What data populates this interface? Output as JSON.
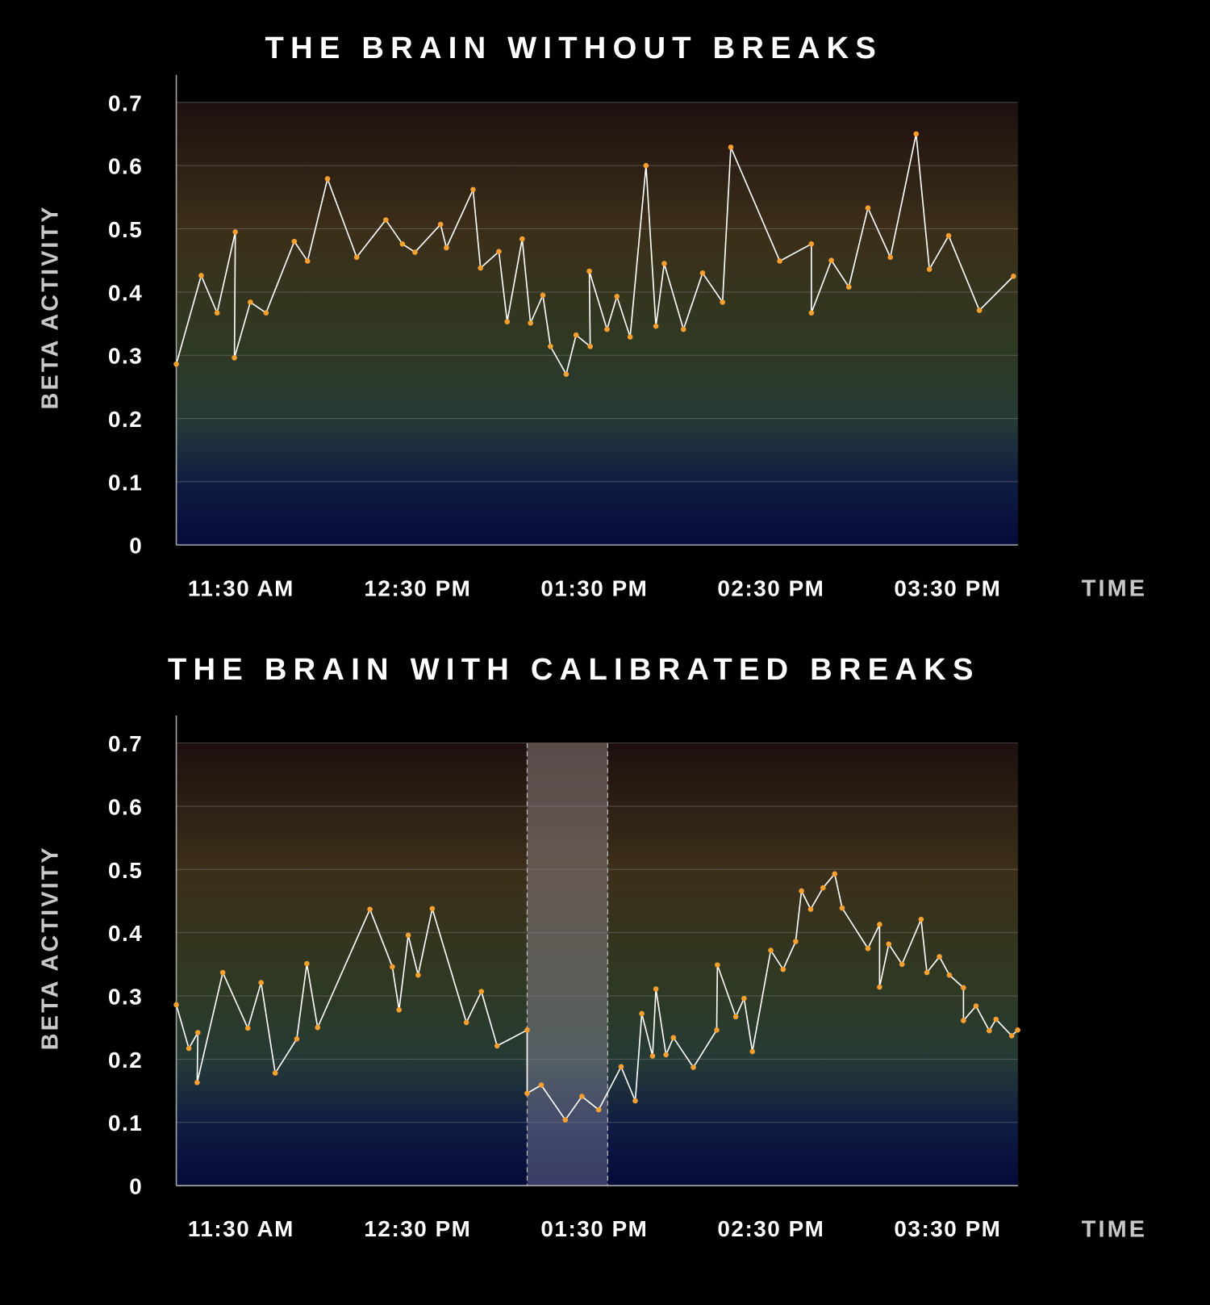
{
  "chart_data": [
    {
      "type": "line",
      "title": "THE BRAIN WITHOUT BREAKS",
      "ylabel": "BETA ACTIVITY",
      "xlabel": "TIME",
      "line_color": "#ffffff",
      "marker_color": "#f5a030",
      "xlim": [
        11.133,
        15.897
      ],
      "ylim": [
        0,
        0.7
      ],
      "xticks": [
        {
          "value": 11.5,
          "label": "11:30 AM"
        },
        {
          "value": 12.5,
          "label": "12:30 PM"
        },
        {
          "value": 13.5,
          "label": "01:30 PM"
        },
        {
          "value": 14.5,
          "label": "02:30 PM"
        },
        {
          "value": 15.5,
          "label": "03:30 PM"
        }
      ],
      "yticks": [
        0,
        0.1,
        0.2,
        0.3,
        0.4,
        0.5,
        0.6,
        0.7
      ],
      "grid": true,
      "x": [
        11.133,
        11.274,
        11.364,
        11.467,
        11.462,
        11.552,
        11.641,
        11.801,
        11.876,
        11.989,
        12.154,
        12.319,
        12.413,
        12.484,
        12.629,
        12.662,
        12.813,
        12.855,
        12.959,
        13.006,
        13.091,
        13.138,
        13.208,
        13.251,
        13.34,
        13.396,
        13.476,
        13.471,
        13.571,
        13.627,
        13.702,
        13.792,
        13.848,
        13.895,
        14.004,
        14.112,
        14.225,
        14.272,
        14.549,
        14.728,
        14.728,
        14.841,
        14.94,
        15.048,
        15.175,
        15.321,
        15.396,
        15.505,
        15.679,
        15.872
      ],
      "values": [
        0.286,
        0.426,
        0.367,
        0.495,
        0.296,
        0.384,
        0.367,
        0.48,
        0.449,
        0.579,
        0.455,
        0.514,
        0.476,
        0.463,
        0.507,
        0.47,
        0.562,
        0.438,
        0.464,
        0.353,
        0.484,
        0.351,
        0.395,
        0.314,
        0.27,
        0.332,
        0.314,
        0.433,
        0.341,
        0.393,
        0.329,
        0.6,
        0.346,
        0.445,
        0.341,
        0.43,
        0.384,
        0.629,
        0.449,
        0.476,
        0.367,
        0.45,
        0.408,
        0.533,
        0.455,
        0.65,
        0.436,
        0.489,
        0.371,
        0.425
      ]
    },
    {
      "type": "line",
      "title": "THE BRAIN WITH CALIBRATED BREAKS",
      "ylabel": "BETA ACTIVITY",
      "xlabel": "TIME",
      "line_color": "#ffffff",
      "marker_color": "#f5a030",
      "shaded_range": [
        13.119,
        13.575
      ],
      "xlim": [
        11.133,
        15.897
      ],
      "ylim": [
        0,
        0.7
      ],
      "xticks": [
        {
          "value": 11.5,
          "label": "11:30 AM"
        },
        {
          "value": 12.5,
          "label": "12:30 PM"
        },
        {
          "value": 13.5,
          "label": "01:30 PM"
        },
        {
          "value": 14.5,
          "label": "02:30 PM"
        },
        {
          "value": 15.5,
          "label": "03:30 PM"
        }
      ],
      "yticks": [
        0,
        0.1,
        0.2,
        0.3,
        0.4,
        0.5,
        0.6,
        0.7
      ],
      "grid": true,
      "x": [
        11.133,
        11.204,
        11.255,
        11.251,
        11.396,
        11.538,
        11.613,
        11.693,
        11.815,
        11.872,
        11.933,
        12.229,
        12.356,
        12.394,
        12.446,
        12.502,
        12.582,
        12.775,
        12.86,
        12.949,
        13.119,
        13.119,
        13.199,
        13.335,
        13.429,
        13.524,
        13.651,
        13.731,
        13.768,
        13.829,
        13.848,
        13.905,
        13.947,
        14.06,
        14.192,
        14.196,
        14.3,
        14.347,
        14.394,
        14.498,
        14.568,
        14.639,
        14.672,
        14.724,
        14.794,
        14.86,
        14.902,
        15.048,
        15.114,
        15.114,
        15.166,
        15.241,
        15.349,
        15.382,
        15.453,
        15.509,
        15.589,
        15.589,
        15.66,
        15.735,
        15.773,
        15.862,
        15.896
      ],
      "values": [
        0.286,
        0.217,
        0.242,
        0.163,
        0.337,
        0.249,
        0.321,
        0.178,
        0.232,
        0.351,
        0.25,
        0.437,
        0.346,
        0.278,
        0.396,
        0.333,
        0.438,
        0.258,
        0.307,
        0.221,
        0.246,
        0.146,
        0.159,
        0.104,
        0.141,
        0.12,
        0.188,
        0.134,
        0.272,
        0.205,
        0.311,
        0.207,
        0.234,
        0.187,
        0.246,
        0.349,
        0.267,
        0.296,
        0.212,
        0.372,
        0.342,
        0.386,
        0.466,
        0.437,
        0.471,
        0.493,
        0.439,
        0.375,
        0.413,
        0.314,
        0.382,
        0.35,
        0.421,
        0.337,
        0.362,
        0.333,
        0.313,
        0.261,
        0.284,
        0.245,
        0.263,
        0.237,
        0.246
      ]
    }
  ]
}
